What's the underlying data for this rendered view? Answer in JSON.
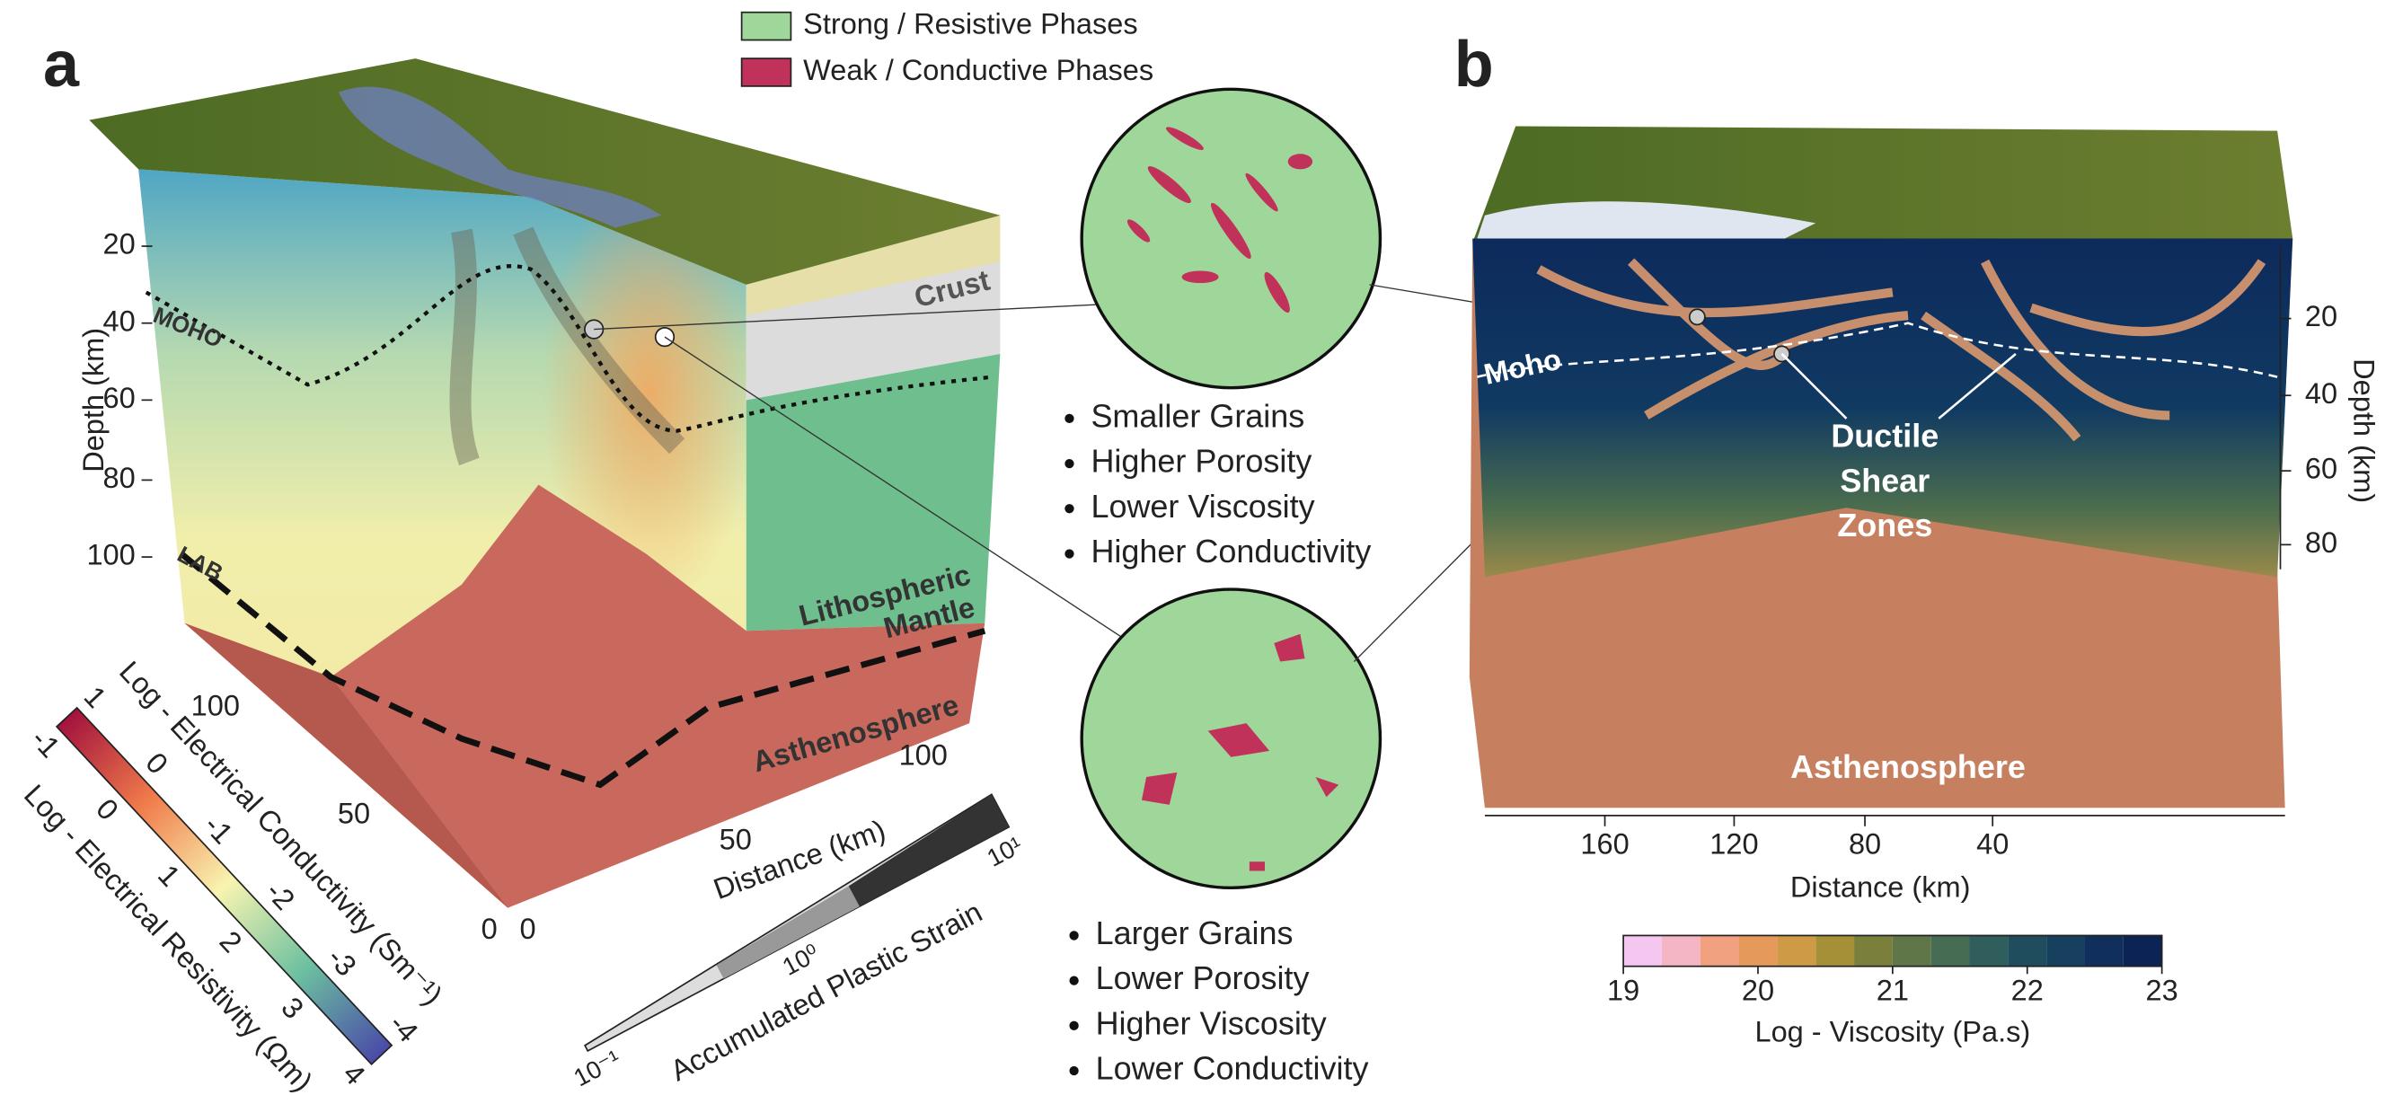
{
  "legend": {
    "strong": "Strong / Resistive Phases",
    "weak": "Weak / Conductive Phases"
  },
  "panel_a": {
    "label": "a",
    "depth_title": "Depth (km)",
    "depth_ticks": [
      20,
      40,
      60,
      80,
      100
    ],
    "layers": {
      "moho": "MOHO",
      "lab": "LAB",
      "crust": "Crust",
      "mantle": [
        "Lithospheric",
        "Mantle"
      ],
      "asthenosphere": "Asthenosphere"
    },
    "distance_title": "Distance (km)",
    "distance_ticks": [
      0,
      50,
      100
    ],
    "side_ticks": [
      0,
      50,
      100
    ],
    "conductivity": {
      "title": "Log - Electrical Conductivity (Sm⁻¹)",
      "ticks": [
        1,
        0,
        -1,
        -2,
        -3,
        -4
      ]
    },
    "resistivity": {
      "title": "Log - Electrical Resistivity (Ωm)",
      "ticks": [
        -1,
        0,
        1,
        2,
        3,
        4
      ]
    },
    "strain": {
      "title": "Accumulated Plastic Strain",
      "ticks": [
        "10⁻¹",
        "10⁰",
        "10¹"
      ]
    }
  },
  "grains": {
    "weak": [
      "Smaller Grains",
      "Higher Porosity",
      "Lower Viscosity",
      "Higher Conductivity"
    ],
    "strong": [
      "Larger Grains",
      "Lower Porosity",
      "Higher Viscosity",
      "Lower Conductivity"
    ]
  },
  "panel_b": {
    "label": "b",
    "moho": "Moho",
    "shear_zones": [
      "Ductile",
      "Shear",
      "Zones"
    ],
    "asthenosphere": "Asthenosphere",
    "depth_title": "Depth (km)",
    "depth_ticks": [
      20,
      40,
      60,
      80
    ],
    "distance_title": "Distance (km)",
    "distance_ticks": [
      160,
      120,
      80,
      40
    ],
    "viscosity": {
      "title": "Log - Viscosity (Pa.s)",
      "ticks": [
        19,
        20,
        21,
        22,
        23
      ]
    }
  }
}
